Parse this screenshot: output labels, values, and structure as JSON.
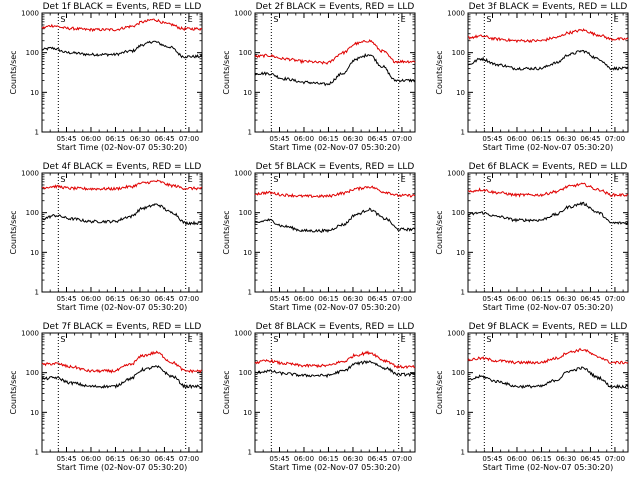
{
  "figure": {
    "title_suffix": "BLACK = Events, RED = LLD",
    "xlabel": "Start Time (02-Nov-07 05:30:20)",
    "ylabel": "Counts/sec",
    "start_mark": "S",
    "end_mark": "E",
    "colors": {
      "events": "#000000",
      "lld": "#e00000",
      "axis": "#000000",
      "dotted": "#000000"
    }
  },
  "chart_data": [
    {
      "type": "line",
      "title": "Det 1f BLACK = Events, RED = LLD",
      "xlabel": "Start Time (02-Nov-07 05:30:20)",
      "ylabel": "Counts/sec",
      "yscale": "log",
      "ylim": [
        1,
        1000
      ],
      "xlim": [
        "05:30",
        "07:08"
      ],
      "x_ticks": [
        "05:45",
        "06:00",
        "06:15",
        "06:30",
        "06:45",
        "07:00"
      ],
      "y_ticks": [
        "1",
        "10",
        "100",
        "1000"
      ],
      "vlines": [
        "05:40",
        "06:58"
      ],
      "series": [
        {
          "name": "Events",
          "color": "#000000",
          "x_min": [
            0,
            6,
            16,
            30,
            44,
            55,
            62,
            68,
            78,
            87,
            98
          ],
          "values": [
            120,
            130,
            100,
            90,
            90,
            110,
            160,
            190,
            140,
            80,
            80
          ]
        },
        {
          "name": "LLD",
          "color": "#e00000",
          "x_min": [
            0,
            6,
            16,
            30,
            44,
            55,
            62,
            68,
            78,
            87,
            98
          ],
          "values": [
            420,
            480,
            410,
            380,
            380,
            460,
            600,
            680,
            520,
            400,
            400
          ]
        }
      ]
    },
    {
      "type": "line",
      "title": "Det 2f BLACK = Events, RED = LLD",
      "xlabel": "Start Time (02-Nov-07 05:30:20)",
      "ylabel": "Counts/sec",
      "yscale": "log",
      "ylim": [
        1,
        1000
      ],
      "xlim": [
        "05:30",
        "07:08"
      ],
      "x_ticks": [
        "05:45",
        "06:00",
        "06:15",
        "06:30",
        "06:45",
        "07:00"
      ],
      "y_ticks": [
        "1",
        "10",
        "100",
        "1000"
      ],
      "vlines": [
        "05:40",
        "06:58"
      ],
      "series": [
        {
          "name": "Events",
          "color": "#000000",
          "x_min": [
            0,
            8,
            18,
            30,
            44,
            54,
            62,
            70,
            78,
            86,
            98
          ],
          "values": [
            30,
            30,
            22,
            18,
            16,
            30,
            70,
            90,
            45,
            20,
            20
          ]
        },
        {
          "name": "LLD",
          "color": "#e00000",
          "x_min": [
            0,
            8,
            18,
            30,
            44,
            54,
            62,
            70,
            78,
            86,
            98
          ],
          "values": [
            80,
            85,
            70,
            60,
            55,
            100,
            170,
            200,
            110,
            60,
            60
          ]
        }
      ]
    },
    {
      "type": "line",
      "title": "Det 3f BLACK = Events, RED = LLD",
      "xlabel": "Start Time (02-Nov-07 05:30:20)",
      "ylabel": "Counts/sec",
      "yscale": "log",
      "ylim": [
        1,
        1000
      ],
      "xlim": [
        "05:30",
        "07:08"
      ],
      "x_ticks": [
        "05:45",
        "06:00",
        "06:15",
        "06:30",
        "06:45",
        "07:00"
      ],
      "y_ticks": [
        "1",
        "10",
        "100",
        "1000"
      ],
      "vlines": [
        "05:40",
        "06:58"
      ],
      "series": [
        {
          "name": "Events",
          "color": "#000000",
          "x_min": [
            0,
            8,
            18,
            30,
            44,
            54,
            62,
            70,
            80,
            88,
            98
          ],
          "values": [
            50,
            70,
            50,
            40,
            40,
            55,
            90,
            110,
            70,
            40,
            40
          ]
        },
        {
          "name": "LLD",
          "color": "#e00000",
          "x_min": [
            0,
            8,
            18,
            30,
            44,
            54,
            62,
            70,
            80,
            88,
            98
          ],
          "values": [
            240,
            260,
            220,
            200,
            200,
            240,
            320,
            370,
            280,
            220,
            220
          ]
        }
      ]
    },
    {
      "type": "line",
      "title": "Det 4f BLACK = Events, RED = LLD",
      "xlabel": "Start Time (02-Nov-07 05:30:20)",
      "ylabel": "Counts/sec",
      "yscale": "log",
      "ylim": [
        1,
        1000
      ],
      "xlim": [
        "05:30",
        "07:08"
      ],
      "x_ticks": [
        "05:45",
        "06:00",
        "06:15",
        "06:30",
        "06:45",
        "07:00"
      ],
      "y_ticks": [
        "1",
        "10",
        "100",
        "1000"
      ],
      "vlines": [
        "05:40",
        "06:58"
      ],
      "series": [
        {
          "name": "Events",
          "color": "#000000",
          "x_min": [
            0,
            8,
            18,
            30,
            44,
            54,
            62,
            70,
            80,
            88,
            98
          ],
          "values": [
            70,
            85,
            70,
            60,
            60,
            80,
            130,
            160,
            100,
            55,
            55
          ]
        },
        {
          "name": "LLD",
          "color": "#e00000",
          "x_min": [
            0,
            8,
            18,
            30,
            44,
            54,
            62,
            70,
            80,
            88,
            98
          ],
          "values": [
            430,
            460,
            410,
            400,
            400,
            450,
            560,
            620,
            480,
            410,
            410
          ]
        }
      ]
    },
    {
      "type": "line",
      "title": "Det 5f BLACK = Events, RED = LLD",
      "xlabel": "Start Time (02-Nov-07 05:30:20)",
      "ylabel": "Counts/sec",
      "yscale": "log",
      "ylim": [
        1,
        1000
      ],
      "xlim": [
        "05:30",
        "07:08"
      ],
      "x_ticks": [
        "05:45",
        "06:00",
        "06:15",
        "06:30",
        "06:45",
        "07:00"
      ],
      "y_ticks": [
        "1",
        "10",
        "100",
        "1000"
      ],
      "vlines": [
        "05:40",
        "06:58"
      ],
      "series": [
        {
          "name": "Events",
          "color": "#000000",
          "x_min": [
            0,
            8,
            18,
            30,
            44,
            54,
            62,
            70,
            80,
            88,
            98
          ],
          "values": [
            55,
            65,
            45,
            35,
            35,
            50,
            90,
            120,
            70,
            38,
            38
          ]
        },
        {
          "name": "LLD",
          "color": "#e00000",
          "x_min": [
            0,
            8,
            18,
            30,
            44,
            54,
            62,
            70,
            80,
            88,
            98
          ],
          "values": [
            300,
            320,
            280,
            260,
            260,
            310,
            400,
            450,
            330,
            270,
            270
          ]
        }
      ]
    },
    {
      "type": "line",
      "title": "Det 6f BLACK = Events, RED = LLD",
      "xlabel": "Start Time (02-Nov-07 05:30:20)",
      "ylabel": "Counts/sec",
      "yscale": "log",
      "ylim": [
        1,
        1000
      ],
      "xlim": [
        "05:30",
        "07:08"
      ],
      "x_ticks": [
        "05:45",
        "06:00",
        "06:15",
        "06:30",
        "06:45",
        "07:00"
      ],
      "y_ticks": [
        "1",
        "10",
        "100",
        "1000"
      ],
      "vlines": [
        "05:40",
        "06:58"
      ],
      "series": [
        {
          "name": "Events",
          "color": "#000000",
          "x_min": [
            0,
            8,
            18,
            30,
            44,
            54,
            62,
            70,
            80,
            88,
            98
          ],
          "values": [
            90,
            100,
            80,
            65,
            65,
            90,
            140,
            170,
            100,
            55,
            55
          ]
        },
        {
          "name": "LLD",
          "color": "#e00000",
          "x_min": [
            0,
            8,
            18,
            30,
            44,
            54,
            62,
            70,
            80,
            88,
            98
          ],
          "values": [
            340,
            380,
            320,
            280,
            280,
            340,
            460,
            520,
            380,
            280,
            280
          ]
        }
      ]
    },
    {
      "type": "line",
      "title": "Det 7f BLACK = Events, RED = LLD",
      "xlabel": "Start Time (02-Nov-07 05:30:20)",
      "ylabel": "Counts/sec",
      "yscale": "log",
      "ylim": [
        1,
        1000
      ],
      "xlim": [
        "05:30",
        "07:08"
      ],
      "x_ticks": [
        "05:45",
        "06:00",
        "06:15",
        "06:30",
        "06:45",
        "07:00"
      ],
      "y_ticks": [
        "1",
        "10",
        "100",
        "1000"
      ],
      "vlines": [
        "05:40",
        "06:58"
      ],
      "series": [
        {
          "name": "Events",
          "color": "#000000",
          "x_min": [
            0,
            8,
            18,
            30,
            44,
            54,
            62,
            70,
            80,
            88,
            98
          ],
          "values": [
            70,
            75,
            55,
            45,
            45,
            70,
            120,
            140,
            80,
            45,
            45
          ]
        },
        {
          "name": "LLD",
          "color": "#e00000",
          "x_min": [
            0,
            8,
            18,
            30,
            44,
            54,
            62,
            70,
            80,
            88,
            98
          ],
          "values": [
            160,
            170,
            140,
            110,
            110,
            160,
            270,
            320,
            180,
            110,
            110
          ]
        }
      ]
    },
    {
      "type": "line",
      "title": "Det 8f BLACK = Events, RED = LLD",
      "xlabel": "Start Time (02-Nov-07 05:30:20)",
      "ylabel": "Counts/sec",
      "yscale": "log",
      "ylim": [
        1,
        1000
      ],
      "xlim": [
        "05:30",
        "07:08"
      ],
      "x_ticks": [
        "05:45",
        "06:00",
        "06:15",
        "06:30",
        "06:45",
        "07:00"
      ],
      "y_ticks": [
        "1",
        "10",
        "100",
        "1000"
      ],
      "vlines": [
        "05:40",
        "06:58"
      ],
      "series": [
        {
          "name": "Events",
          "color": "#000000",
          "x_min": [
            0,
            8,
            18,
            30,
            44,
            54,
            62,
            70,
            80,
            88,
            98
          ],
          "values": [
            100,
            110,
            95,
            85,
            85,
            110,
            170,
            190,
            130,
            90,
            90
          ]
        },
        {
          "name": "LLD",
          "color": "#e00000",
          "x_min": [
            0,
            8,
            18,
            30,
            44,
            54,
            62,
            70,
            80,
            88,
            98
          ],
          "values": [
            180,
            200,
            170,
            150,
            150,
            190,
            280,
            320,
            200,
            140,
            140
          ]
        }
      ]
    },
    {
      "type": "line",
      "title": "Det 9f BLACK = Events, RED = LLD",
      "xlabel": "Start Time (02-Nov-07 05:30:20)",
      "ylabel": "Counts/sec",
      "yscale": "log",
      "ylim": [
        1,
        1000
      ],
      "xlim": [
        "05:30",
        "07:08"
      ],
      "x_ticks": [
        "05:45",
        "06:00",
        "06:15",
        "06:30",
        "06:45",
        "07:00"
      ],
      "y_ticks": [
        "1",
        "10",
        "100",
        "1000"
      ],
      "vlines": [
        "05:40",
        "06:58"
      ],
      "series": [
        {
          "name": "Events",
          "color": "#000000",
          "x_min": [
            0,
            8,
            18,
            30,
            44,
            54,
            62,
            70,
            80,
            88,
            98
          ],
          "values": [
            65,
            80,
            60,
            45,
            45,
            65,
            110,
            130,
            75,
            45,
            45
          ]
        },
        {
          "name": "LLD",
          "color": "#e00000",
          "x_min": [
            0,
            8,
            18,
            30,
            44,
            54,
            62,
            70,
            80,
            88,
            98
          ],
          "values": [
            210,
            230,
            200,
            180,
            180,
            230,
            330,
            380,
            250,
            180,
            180
          ]
        }
      ]
    }
  ]
}
